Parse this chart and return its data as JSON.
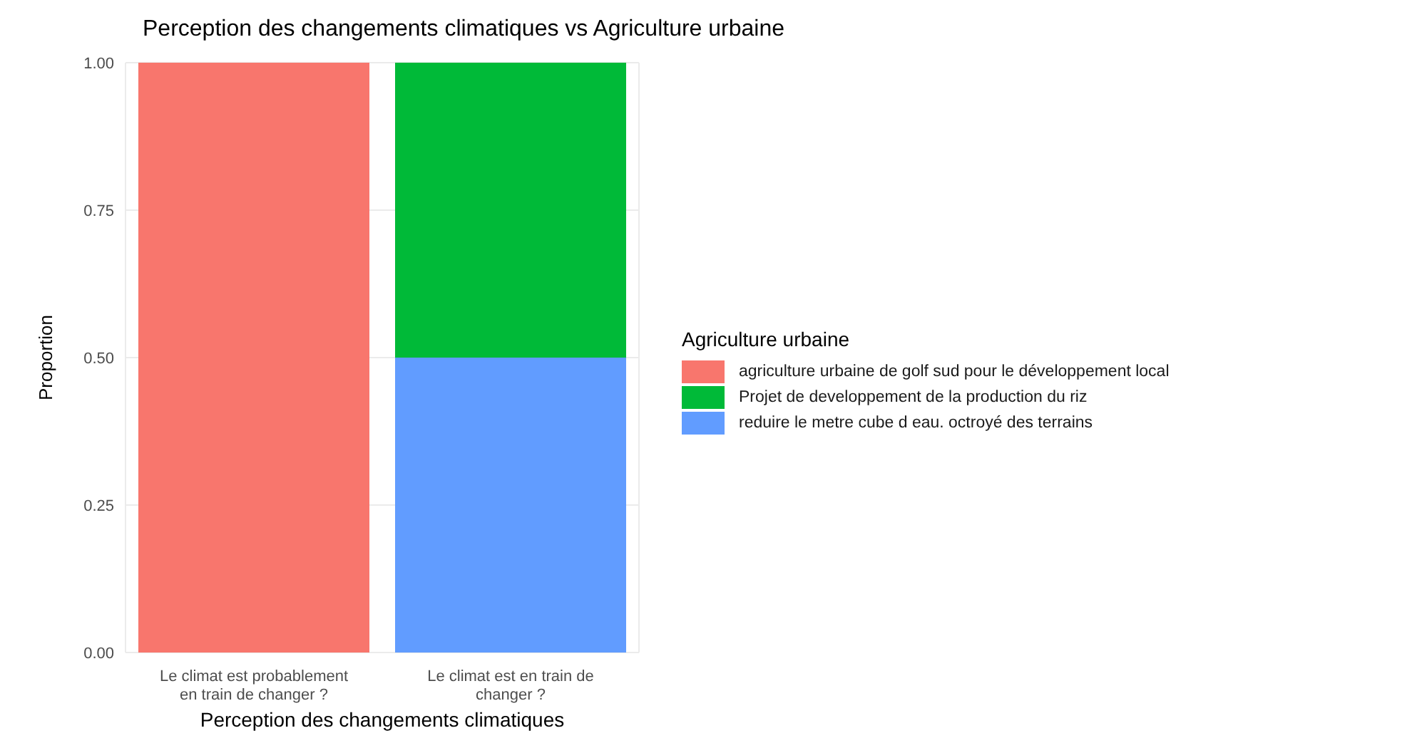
{
  "chart_data": {
    "type": "bar",
    "title": "Perception des changements climatiques vs Agriculture urbaine",
    "xlabel": "Perception des changements climatiques",
    "ylabel": "Proportion",
    "legend_title": "Agriculture urbaine",
    "categories": [
      "Le climat est probablement en train de changer ?",
      "Le climat est en train de changer ?"
    ],
    "stacked": true,
    "series": [
      {
        "name": "reduire le metre cube d eau. octroyé des terrains",
        "color": "#619cff",
        "values": [
          null,
          0.5
        ]
      },
      {
        "name": "Projet de developpement de la production du riz",
        "color": "#00ba38",
        "values": [
          null,
          0.5
        ]
      },
      {
        "name": "agriculture urbaine de golf sud pour le développement local",
        "color": "#f8766d",
        "values": [
          1.0,
          null
        ]
      }
    ],
    "ylim": [
      0,
      1.0
    ],
    "yticks": [
      {
        "value": 0,
        "label": "0.00"
      },
      {
        "value": 0.25,
        "label": "0.25"
      },
      {
        "value": 0.5,
        "label": "0.50"
      },
      {
        "value": 0.75,
        "label": "0.75"
      },
      {
        "value": 1.0,
        "label": "1.00"
      }
    ],
    "grid": true,
    "legend": "right"
  }
}
